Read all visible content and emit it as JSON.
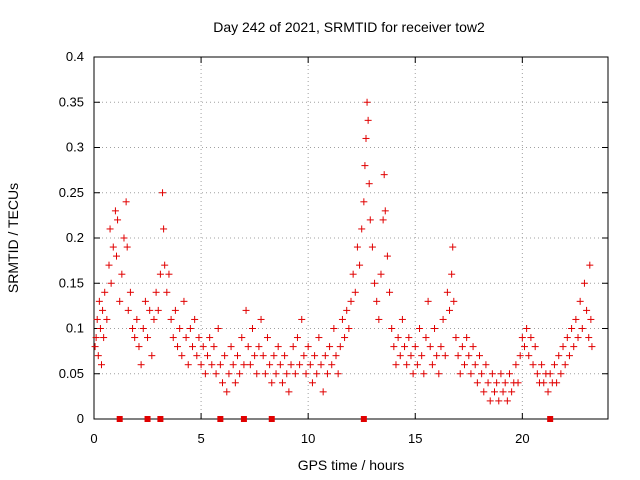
{
  "chart_data": {
    "type": "scatter",
    "title": "Day 242 of 2021, SRMTID for receiver tow2",
    "xlabel": "GPS time / hours",
    "ylabel": "SRMTID / TECUs",
    "xlim": [
      0,
      24
    ],
    "ylim": [
      0,
      0.4
    ],
    "xticks": [
      0,
      5,
      10,
      15,
      20
    ],
    "yticks": [
      0,
      0.05,
      0.1,
      0.15,
      0.2,
      0.25,
      0.3,
      0.35,
      0.4
    ],
    "xtick_labels": [
      "0",
      "5",
      "10",
      "15",
      "20"
    ],
    "ytick_labels": [
      "0",
      "0.05",
      "0.1",
      "0.15",
      "0.2",
      "0.25",
      "0.3",
      "0.35",
      "0.4"
    ],
    "grid": true,
    "marker": "+",
    "color": "#e00000",
    "series": [
      {
        "name": "SRMTID",
        "points": [
          [
            0.05,
            0.08
          ],
          [
            0.1,
            0.09
          ],
          [
            0.15,
            0.11
          ],
          [
            0.2,
            0.07
          ],
          [
            0.25,
            0.13
          ],
          [
            0.3,
            0.1
          ],
          [
            0.35,
            0.06
          ],
          [
            0.4,
            0.12
          ],
          [
            0.45,
            0.09
          ],
          [
            0.5,
            0.14
          ],
          [
            0.6,
            0.11
          ],
          [
            0.7,
            0.17
          ],
          [
            0.75,
            0.21
          ],
          [
            0.8,
            0.15
          ],
          [
            0.9,
            0.19
          ],
          [
            1.0,
            0.23
          ],
          [
            1.05,
            0.18
          ],
          [
            1.1,
            0.22
          ],
          [
            1.2,
            0.13
          ],
          [
            1.3,
            0.16
          ],
          [
            1.4,
            0.2
          ],
          [
            1.5,
            0.24
          ],
          [
            1.55,
            0.19
          ],
          [
            1.6,
            0.12
          ],
          [
            1.7,
            0.14
          ],
          [
            1.8,
            0.1
          ],
          [
            1.9,
            0.09
          ],
          [
            2.0,
            0.11
          ],
          [
            2.1,
            0.08
          ],
          [
            2.2,
            0.06
          ],
          [
            2.3,
            0.1
          ],
          [
            2.4,
            0.13
          ],
          [
            2.5,
            0.09
          ],
          [
            2.6,
            0.12
          ],
          [
            2.7,
            0.07
          ],
          [
            2.8,
            0.11
          ],
          [
            2.9,
            0.14
          ],
          [
            3.0,
            0.12
          ],
          [
            3.1,
            0.16
          ],
          [
            3.2,
            0.25
          ],
          [
            3.25,
            0.21
          ],
          [
            3.3,
            0.17
          ],
          [
            3.4,
            0.14
          ],
          [
            3.5,
            0.16
          ],
          [
            3.6,
            0.11
          ],
          [
            3.7,
            0.09
          ],
          [
            3.8,
            0.12
          ],
          [
            3.9,
            0.08
          ],
          [
            4.0,
            0.1
          ],
          [
            4.1,
            0.07
          ],
          [
            4.2,
            0.13
          ],
          [
            4.3,
            0.09
          ],
          [
            4.4,
            0.06
          ],
          [
            4.5,
            0.1
          ],
          [
            4.6,
            0.08
          ],
          [
            4.7,
            0.11
          ],
          [
            4.8,
            0.07
          ],
          [
            4.9,
            0.09
          ],
          [
            5.0,
            0.06
          ],
          [
            5.1,
            0.08
          ],
          [
            5.2,
            0.05
          ],
          [
            5.3,
            0.07
          ],
          [
            5.4,
            0.09
          ],
          [
            5.5,
            0.06
          ],
          [
            5.6,
            0.08
          ],
          [
            5.7,
            0.05
          ],
          [
            5.8,
            0.1
          ],
          [
            5.9,
            0.06
          ],
          [
            6.0,
            0.04
          ],
          [
            6.1,
            0.07
          ],
          [
            6.2,
            0.03
          ],
          [
            6.3,
            0.05
          ],
          [
            6.4,
            0.08
          ],
          [
            6.5,
            0.06
          ],
          [
            6.6,
            0.04
          ],
          [
            6.7,
            0.07
          ],
          [
            6.8,
            0.05
          ],
          [
            6.9,
            0.09
          ],
          [
            7.0,
            0.06
          ],
          [
            7.1,
            0.12
          ],
          [
            7.2,
            0.08
          ],
          [
            7.3,
            0.06
          ],
          [
            7.4,
            0.1
          ],
          [
            7.5,
            0.07
          ],
          [
            7.6,
            0.05
          ],
          [
            7.7,
            0.08
          ],
          [
            7.8,
            0.11
          ],
          [
            7.9,
            0.07
          ],
          [
            8.0,
            0.05
          ],
          [
            8.1,
            0.09
          ],
          [
            8.2,
            0.06
          ],
          [
            8.3,
            0.04
          ],
          [
            8.4,
            0.07
          ],
          [
            8.5,
            0.05
          ],
          [
            8.6,
            0.08
          ],
          [
            8.7,
            0.06
          ],
          [
            8.8,
            0.04
          ],
          [
            8.9,
            0.07
          ],
          [
            9.0,
            0.05
          ],
          [
            9.1,
            0.03
          ],
          [
            9.2,
            0.06
          ],
          [
            9.3,
            0.08
          ],
          [
            9.4,
            0.05
          ],
          [
            9.5,
            0.09
          ],
          [
            9.6,
            0.06
          ],
          [
            9.7,
            0.11
          ],
          [
            9.8,
            0.07
          ],
          [
            9.9,
            0.05
          ],
          [
            10.0,
            0.08
          ],
          [
            10.1,
            0.06
          ],
          [
            10.2,
            0.04
          ],
          [
            10.3,
            0.07
          ],
          [
            10.4,
            0.05
          ],
          [
            10.5,
            0.09
          ],
          [
            10.6,
            0.06
          ],
          [
            10.7,
            0.03
          ],
          [
            10.8,
            0.07
          ],
          [
            10.9,
            0.05
          ],
          [
            11.0,
            0.08
          ],
          [
            11.1,
            0.06
          ],
          [
            11.2,
            0.1
          ],
          [
            11.3,
            0.07
          ],
          [
            11.4,
            0.05
          ],
          [
            11.5,
            0.08
          ],
          [
            11.6,
            0.11
          ],
          [
            11.7,
            0.09
          ],
          [
            11.8,
            0.12
          ],
          [
            11.9,
            0.1
          ],
          [
            12.0,
            0.13
          ],
          [
            12.1,
            0.16
          ],
          [
            12.2,
            0.14
          ],
          [
            12.3,
            0.19
          ],
          [
            12.4,
            0.17
          ],
          [
            12.5,
            0.21
          ],
          [
            12.6,
            0.24
          ],
          [
            12.65,
            0.28
          ],
          [
            12.7,
            0.31
          ],
          [
            12.75,
            0.35
          ],
          [
            12.8,
            0.33
          ],
          [
            12.85,
            0.26
          ],
          [
            12.9,
            0.22
          ],
          [
            13.0,
            0.19
          ],
          [
            13.1,
            0.15
          ],
          [
            13.2,
            0.13
          ],
          [
            13.3,
            0.11
          ],
          [
            13.4,
            0.16
          ],
          [
            13.5,
            0.22
          ],
          [
            13.55,
            0.27
          ],
          [
            13.6,
            0.23
          ],
          [
            13.7,
            0.18
          ],
          [
            13.8,
            0.14
          ],
          [
            13.9,
            0.1
          ],
          [
            14.0,
            0.08
          ],
          [
            14.1,
            0.06
          ],
          [
            14.2,
            0.09
          ],
          [
            14.3,
            0.07
          ],
          [
            14.4,
            0.11
          ],
          [
            14.5,
            0.08
          ],
          [
            14.6,
            0.06
          ],
          [
            14.7,
            0.09
          ],
          [
            14.8,
            0.07
          ],
          [
            14.9,
            0.05
          ],
          [
            15.0,
            0.08
          ],
          [
            15.1,
            0.06
          ],
          [
            15.2,
            0.1
          ],
          [
            15.3,
            0.07
          ],
          [
            15.4,
            0.05
          ],
          [
            15.5,
            0.09
          ],
          [
            15.6,
            0.13
          ],
          [
            15.7,
            0.08
          ],
          [
            15.8,
            0.06
          ],
          [
            15.9,
            0.1
          ],
          [
            16.0,
            0.07
          ],
          [
            16.1,
            0.05
          ],
          [
            16.2,
            0.08
          ],
          [
            16.3,
            0.11
          ],
          [
            16.4,
            0.07
          ],
          [
            16.5,
            0.14
          ],
          [
            16.6,
            0.12
          ],
          [
            16.7,
            0.16
          ],
          [
            16.75,
            0.19
          ],
          [
            16.8,
            0.13
          ],
          [
            16.9,
            0.09
          ],
          [
            17.0,
            0.07
          ],
          [
            17.1,
            0.05
          ],
          [
            17.2,
            0.08
          ],
          [
            17.3,
            0.06
          ],
          [
            17.4,
            0.09
          ],
          [
            17.5,
            0.07
          ],
          [
            17.6,
            0.05
          ],
          [
            17.7,
            0.08
          ],
          [
            17.8,
            0.06
          ],
          [
            17.9,
            0.04
          ],
          [
            18.0,
            0.07
          ],
          [
            18.1,
            0.05
          ],
          [
            18.2,
            0.03
          ],
          [
            18.3,
            0.06
          ],
          [
            18.4,
            0.04
          ],
          [
            18.5,
            0.02
          ],
          [
            18.6,
            0.05
          ],
          [
            18.7,
            0.03
          ],
          [
            18.8,
            0.04
          ],
          [
            18.9,
            0.02
          ],
          [
            19.0,
            0.05
          ],
          [
            19.1,
            0.03
          ],
          [
            19.2,
            0.04
          ],
          [
            19.3,
            0.02
          ],
          [
            19.4,
            0.05
          ],
          [
            19.5,
            0.03
          ],
          [
            19.6,
            0.04
          ],
          [
            19.7,
            0.06
          ],
          [
            19.8,
            0.04
          ],
          [
            19.9,
            0.07
          ],
          [
            20.0,
            0.09
          ],
          [
            20.1,
            0.08
          ],
          [
            20.2,
            0.1
          ],
          [
            20.3,
            0.07
          ],
          [
            20.4,
            0.09
          ],
          [
            20.5,
            0.06
          ],
          [
            20.6,
            0.08
          ],
          [
            20.7,
            0.05
          ],
          [
            20.8,
            0.04
          ],
          [
            20.9,
            0.06
          ],
          [
            21.0,
            0.04
          ],
          [
            21.1,
            0.05
          ],
          [
            21.2,
            0.03
          ],
          [
            21.3,
            0.05
          ],
          [
            21.4,
            0.04
          ],
          [
            21.5,
            0.06
          ],
          [
            21.6,
            0.04
          ],
          [
            21.7,
            0.07
          ],
          [
            21.8,
            0.05
          ],
          [
            21.9,
            0.08
          ],
          [
            22.0,
            0.06
          ],
          [
            22.1,
            0.09
          ],
          [
            22.2,
            0.07
          ],
          [
            22.3,
            0.1
          ],
          [
            22.4,
            0.08
          ],
          [
            22.5,
            0.11
          ],
          [
            22.6,
            0.09
          ],
          [
            22.7,
            0.13
          ],
          [
            22.8,
            0.1
          ],
          [
            22.9,
            0.15
          ],
          [
            23.0,
            0.12
          ],
          [
            23.1,
            0.09
          ],
          [
            23.15,
            0.17
          ],
          [
            23.2,
            0.11
          ],
          [
            23.25,
            0.08
          ]
        ]
      }
    ],
    "baseline_markers": [
      1.2,
      2.5,
      3.1,
      5.9,
      7.0,
      8.3,
      12.6,
      21.3
    ]
  }
}
